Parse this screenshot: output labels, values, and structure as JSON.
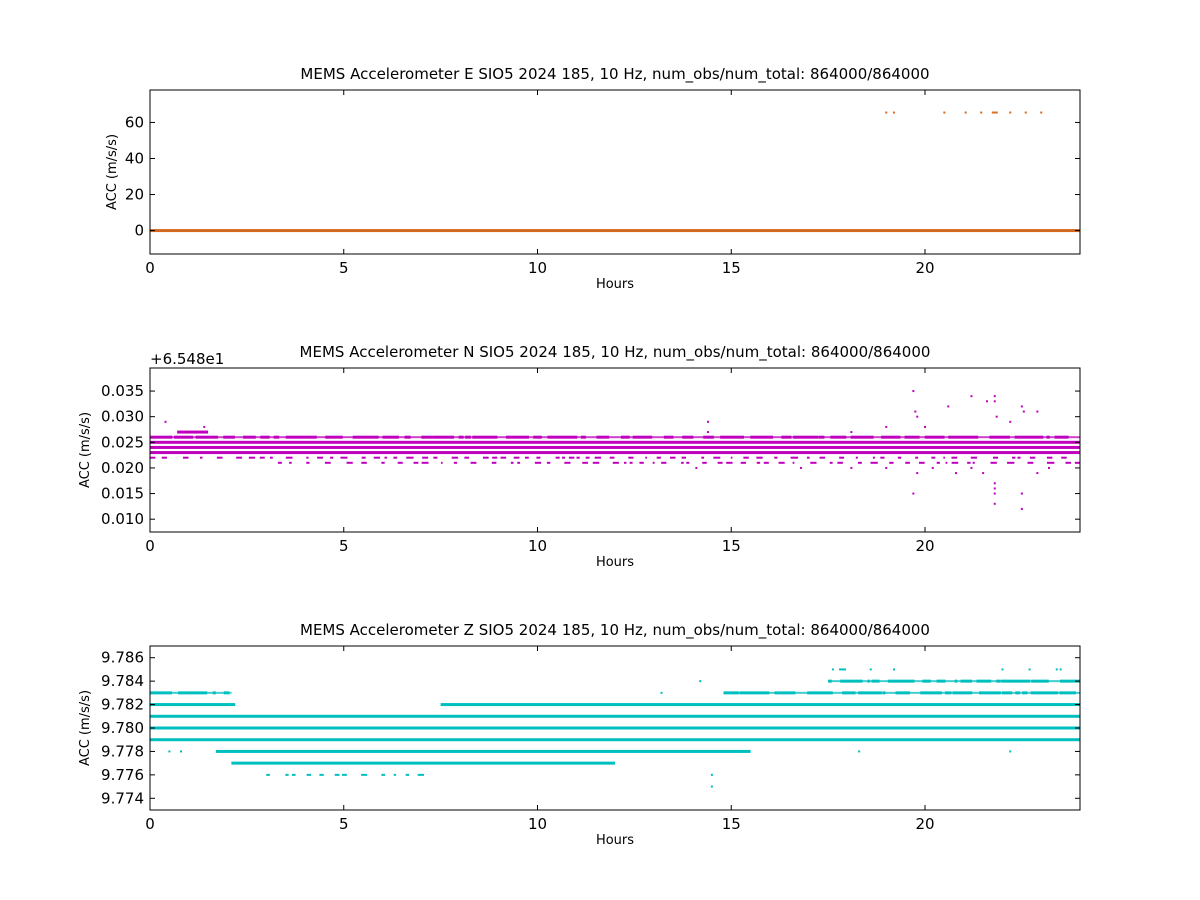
{
  "chart_data": [
    {
      "type": "scatter",
      "title": "MEMS Accelerometer E SIO5 2024 185, 10 Hz, num_obs/num_total: 864000/864000",
      "xlabel": "Hours",
      "ylabel": "ACC (m/s/s)",
      "offset_text": "",
      "xlim": [
        0,
        24
      ],
      "ylim": [
        -13,
        78
      ],
      "xticks": [
        0,
        5,
        10,
        15,
        20
      ],
      "yticks": [
        0,
        20,
        40,
        60
      ],
      "ytick_labels": [
        "0",
        "20",
        "40",
        "60"
      ],
      "grid": false,
      "color": "#d2691e",
      "series": [
        {
          "values": {
            "bands": [
              {
                "y": 0.0,
                "x0": 0,
                "x1": 24,
                "density": "solid"
              }
            ],
            "points": [
              {
                "x": 19.0,
                "y": 65.5
              },
              {
                "x": 19.2,
                "y": 65.5
              },
              {
                "x": 20.5,
                "y": 65.5
              },
              {
                "x": 21.05,
                "y": 65.5
              },
              {
                "x": 21.45,
                "y": 65.5
              },
              {
                "x": 21.75,
                "y": 65.5
              },
              {
                "x": 21.8,
                "y": 65.5
              },
              {
                "x": 21.85,
                "y": 65.5
              },
              {
                "x": 22.2,
                "y": 65.5
              },
              {
                "x": 22.6,
                "y": 65.5
              },
              {
                "x": 23.0,
                "y": 65.5
              }
            ]
          }
        }
      ]
    },
    {
      "type": "scatter",
      "title": "MEMS Accelerometer N SIO5 2024 185, 10 Hz, num_obs/num_total: 864000/864000",
      "xlabel": "Hours",
      "ylabel": "ACC (m/s/s)",
      "offset_text": "+6.548e1",
      "xlim": [
        0,
        24
      ],
      "ylim": [
        0.0075,
        0.0395
      ],
      "xticks": [
        0,
        5,
        10,
        15,
        20
      ],
      "yticks": [
        0.01,
        0.015,
        0.02,
        0.025,
        0.03,
        0.035
      ],
      "ytick_labels": [
        "0.010",
        "0.015",
        "0.020",
        "0.025",
        "0.030",
        "0.035"
      ],
      "grid": false,
      "color": "#bf00bf",
      "series": [
        {
          "values": {
            "bands": [
              {
                "y": 0.022,
                "x0": 0,
                "x1": 24,
                "density": "sparse"
              },
              {
                "y": 0.023,
                "x0": 0,
                "x1": 24,
                "density": "solid"
              },
              {
                "y": 0.024,
                "x0": 0,
                "x1": 24,
                "density": "solid"
              },
              {
                "y": 0.025,
                "x0": 0,
                "x1": 24,
                "density": "solid"
              },
              {
                "y": 0.026,
                "x0": 0,
                "x1": 24,
                "density": "mixed"
              },
              {
                "y": 0.027,
                "x0": 0.7,
                "x1": 1.5,
                "density": "solid"
              },
              {
                "y": 0.021,
                "x0": 3.3,
                "x1": 24,
                "density": "sparse"
              }
            ],
            "points": [
              {
                "x": 0.4,
                "y": 0.029
              },
              {
                "x": 1.4,
                "y": 0.028
              },
              {
                "x": 14.4,
                "y": 0.029
              },
              {
                "x": 14.4,
                "y": 0.027
              },
              {
                "x": 14.1,
                "y": 0.02
              },
              {
                "x": 16.8,
                "y": 0.02
              },
              {
                "x": 18.1,
                "y": 0.027
              },
              {
                "x": 18.1,
                "y": 0.02
              },
              {
                "x": 19.0,
                "y": 0.028
              },
              {
                "x": 19.0,
                "y": 0.02
              },
              {
                "x": 19.7,
                "y": 0.035
              },
              {
                "x": 19.75,
                "y": 0.031
              },
              {
                "x": 19.8,
                "y": 0.03
              },
              {
                "x": 19.7,
                "y": 0.015
              },
              {
                "x": 19.8,
                "y": 0.019
              },
              {
                "x": 20.0,
                "y": 0.028
              },
              {
                "x": 20.2,
                "y": 0.02
              },
              {
                "x": 20.6,
                "y": 0.032
              },
              {
                "x": 20.8,
                "y": 0.019
              },
              {
                "x": 21.2,
                "y": 0.034
              },
              {
                "x": 21.2,
                "y": 0.02
              },
              {
                "x": 21.6,
                "y": 0.033
              },
              {
                "x": 21.8,
                "y": 0.034
              },
              {
                "x": 21.8,
                "y": 0.033
              },
              {
                "x": 21.85,
                "y": 0.03
              },
              {
                "x": 21.8,
                "y": 0.017
              },
              {
                "x": 21.8,
                "y": 0.016
              },
              {
                "x": 21.8,
                "y": 0.015
              },
              {
                "x": 21.8,
                "y": 0.013
              },
              {
                "x": 21.5,
                "y": 0.019
              },
              {
                "x": 22.2,
                "y": 0.029
              },
              {
                "x": 22.5,
                "y": 0.032
              },
              {
                "x": 22.55,
                "y": 0.031
              },
              {
                "x": 22.5,
                "y": 0.015
              },
              {
                "x": 22.5,
                "y": 0.012
              },
              {
                "x": 22.9,
                "y": 0.031
              },
              {
                "x": 22.9,
                "y": 0.019
              },
              {
                "x": 23.2,
                "y": 0.02
              }
            ]
          }
        }
      ]
    },
    {
      "type": "scatter",
      "title": "MEMS Accelerometer Z SIO5 2024 185, 10 Hz, num_obs/num_total: 864000/864000",
      "xlabel": "Hours",
      "ylabel": "ACC (m/s/s)",
      "offset_text": "",
      "xlim": [
        0,
        24
      ],
      "ylim": [
        9.773,
        9.787
      ],
      "xticks": [
        0,
        5,
        10,
        15,
        20
      ],
      "yticks": [
        9.774,
        9.776,
        9.778,
        9.78,
        9.782,
        9.784,
        9.786
      ],
      "ytick_labels": [
        "9.774",
        "9.776",
        "9.778",
        "9.780",
        "9.782",
        "9.784",
        "9.786"
      ],
      "grid": false,
      "color": "#00bfbf",
      "series": [
        {
          "values": {
            "bands": [
              {
                "y": 9.783,
                "x0": 0,
                "x1": 2.1,
                "density": "mixed"
              },
              {
                "y": 9.783,
                "x0": 14.8,
                "x1": 24,
                "density": "mixed"
              },
              {
                "y": 9.782,
                "x0": 0,
                "x1": 2.2,
                "density": "solid"
              },
              {
                "y": 9.782,
                "x0": 7.5,
                "x1": 24,
                "density": "solid"
              },
              {
                "y": 9.781,
                "x0": 0,
                "x1": 24,
                "density": "solid"
              },
              {
                "y": 9.78,
                "x0": 0,
                "x1": 24,
                "density": "solid"
              },
              {
                "y": 9.779,
                "x0": 0,
                "x1": 24,
                "density": "solid"
              },
              {
                "y": 9.778,
                "x0": 1.7,
                "x1": 15.5,
                "density": "solid"
              },
              {
                "y": 9.777,
                "x0": 2.1,
                "x1": 12.0,
                "density": "solid"
              },
              {
                "y": 9.784,
                "x0": 17.5,
                "x1": 24,
                "density": "mixed"
              },
              {
                "y": 9.785,
                "x0": 17.6,
                "x1": 18.1,
                "density": "sparse"
              },
              {
                "y": 9.776,
                "x0": 3.0,
                "x1": 7.2,
                "density": "sparse"
              }
            ],
            "points": [
              {
                "x": 13.2,
                "y": 9.783
              },
              {
                "x": 14.2,
                "y": 9.784
              },
              {
                "x": 14.5,
                "y": 9.776
              },
              {
                "x": 14.5,
                "y": 9.775
              },
              {
                "x": 18.6,
                "y": 9.785
              },
              {
                "x": 19.2,
                "y": 9.785
              },
              {
                "x": 22.0,
                "y": 9.785
              },
              {
                "x": 22.7,
                "y": 9.785
              },
              {
                "x": 23.4,
                "y": 9.785
              },
              {
                "x": 23.5,
                "y": 9.785
              },
              {
                "x": 0.5,
                "y": 9.778
              },
              {
                "x": 0.8,
                "y": 9.778
              },
              {
                "x": 18.3,
                "y": 9.778
              },
              {
                "x": 22.2,
                "y": 9.778
              }
            ]
          }
        }
      ]
    }
  ]
}
